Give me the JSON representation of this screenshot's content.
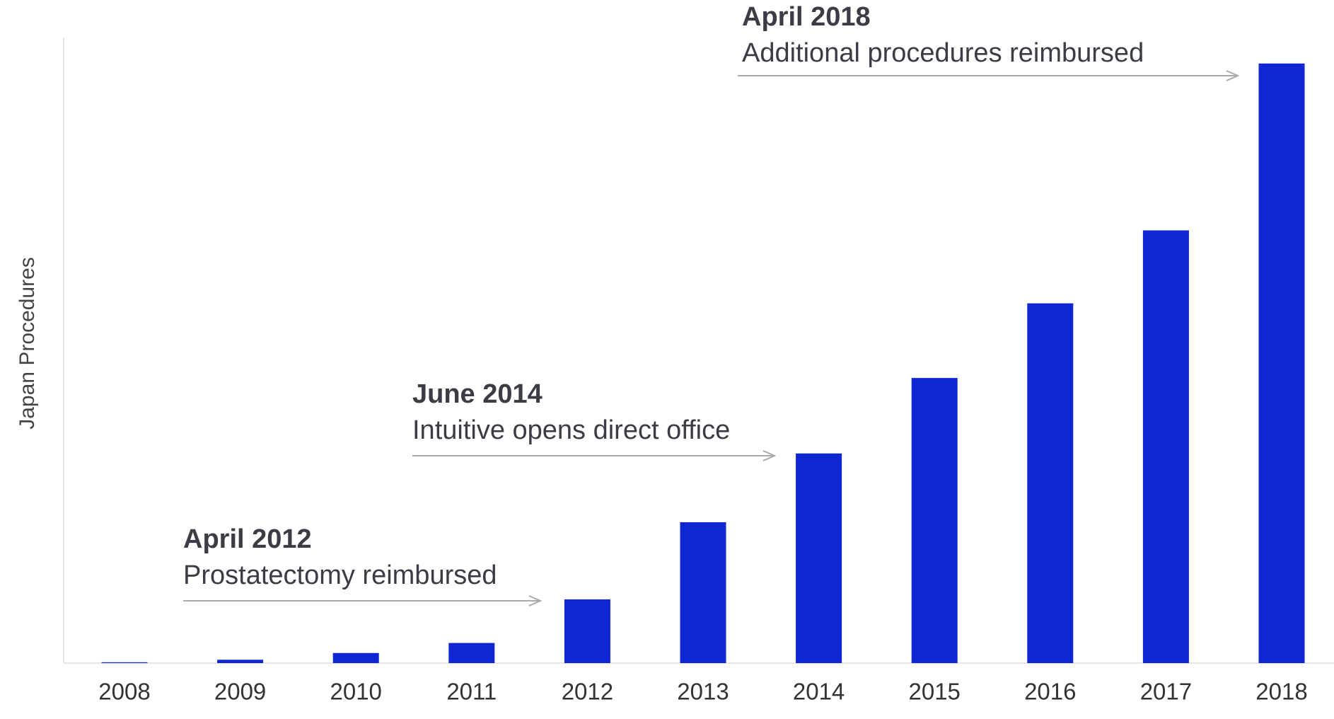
{
  "chart_data": {
    "type": "bar",
    "ylabel": "Japan Procedures",
    "categories": [
      "2008",
      "2009",
      "2010",
      "2011",
      "2012",
      "2013",
      "2014",
      "2015",
      "2016",
      "2017",
      "2018"
    ],
    "values": [
      1,
      4,
      12,
      24,
      76,
      168,
      250,
      340,
      429,
      516,
      715
    ],
    "color": "#0f26d2",
    "ylim": [
      0,
      746
    ],
    "annotations": [
      {
        "title": "April 2012",
        "text": "Prostatectomy reimbursed"
      },
      {
        "title": "June 2014",
        "text": "Intuitive opens direct office"
      },
      {
        "title": "April 2018",
        "text": "Additional procedures reimbursed"
      }
    ]
  }
}
